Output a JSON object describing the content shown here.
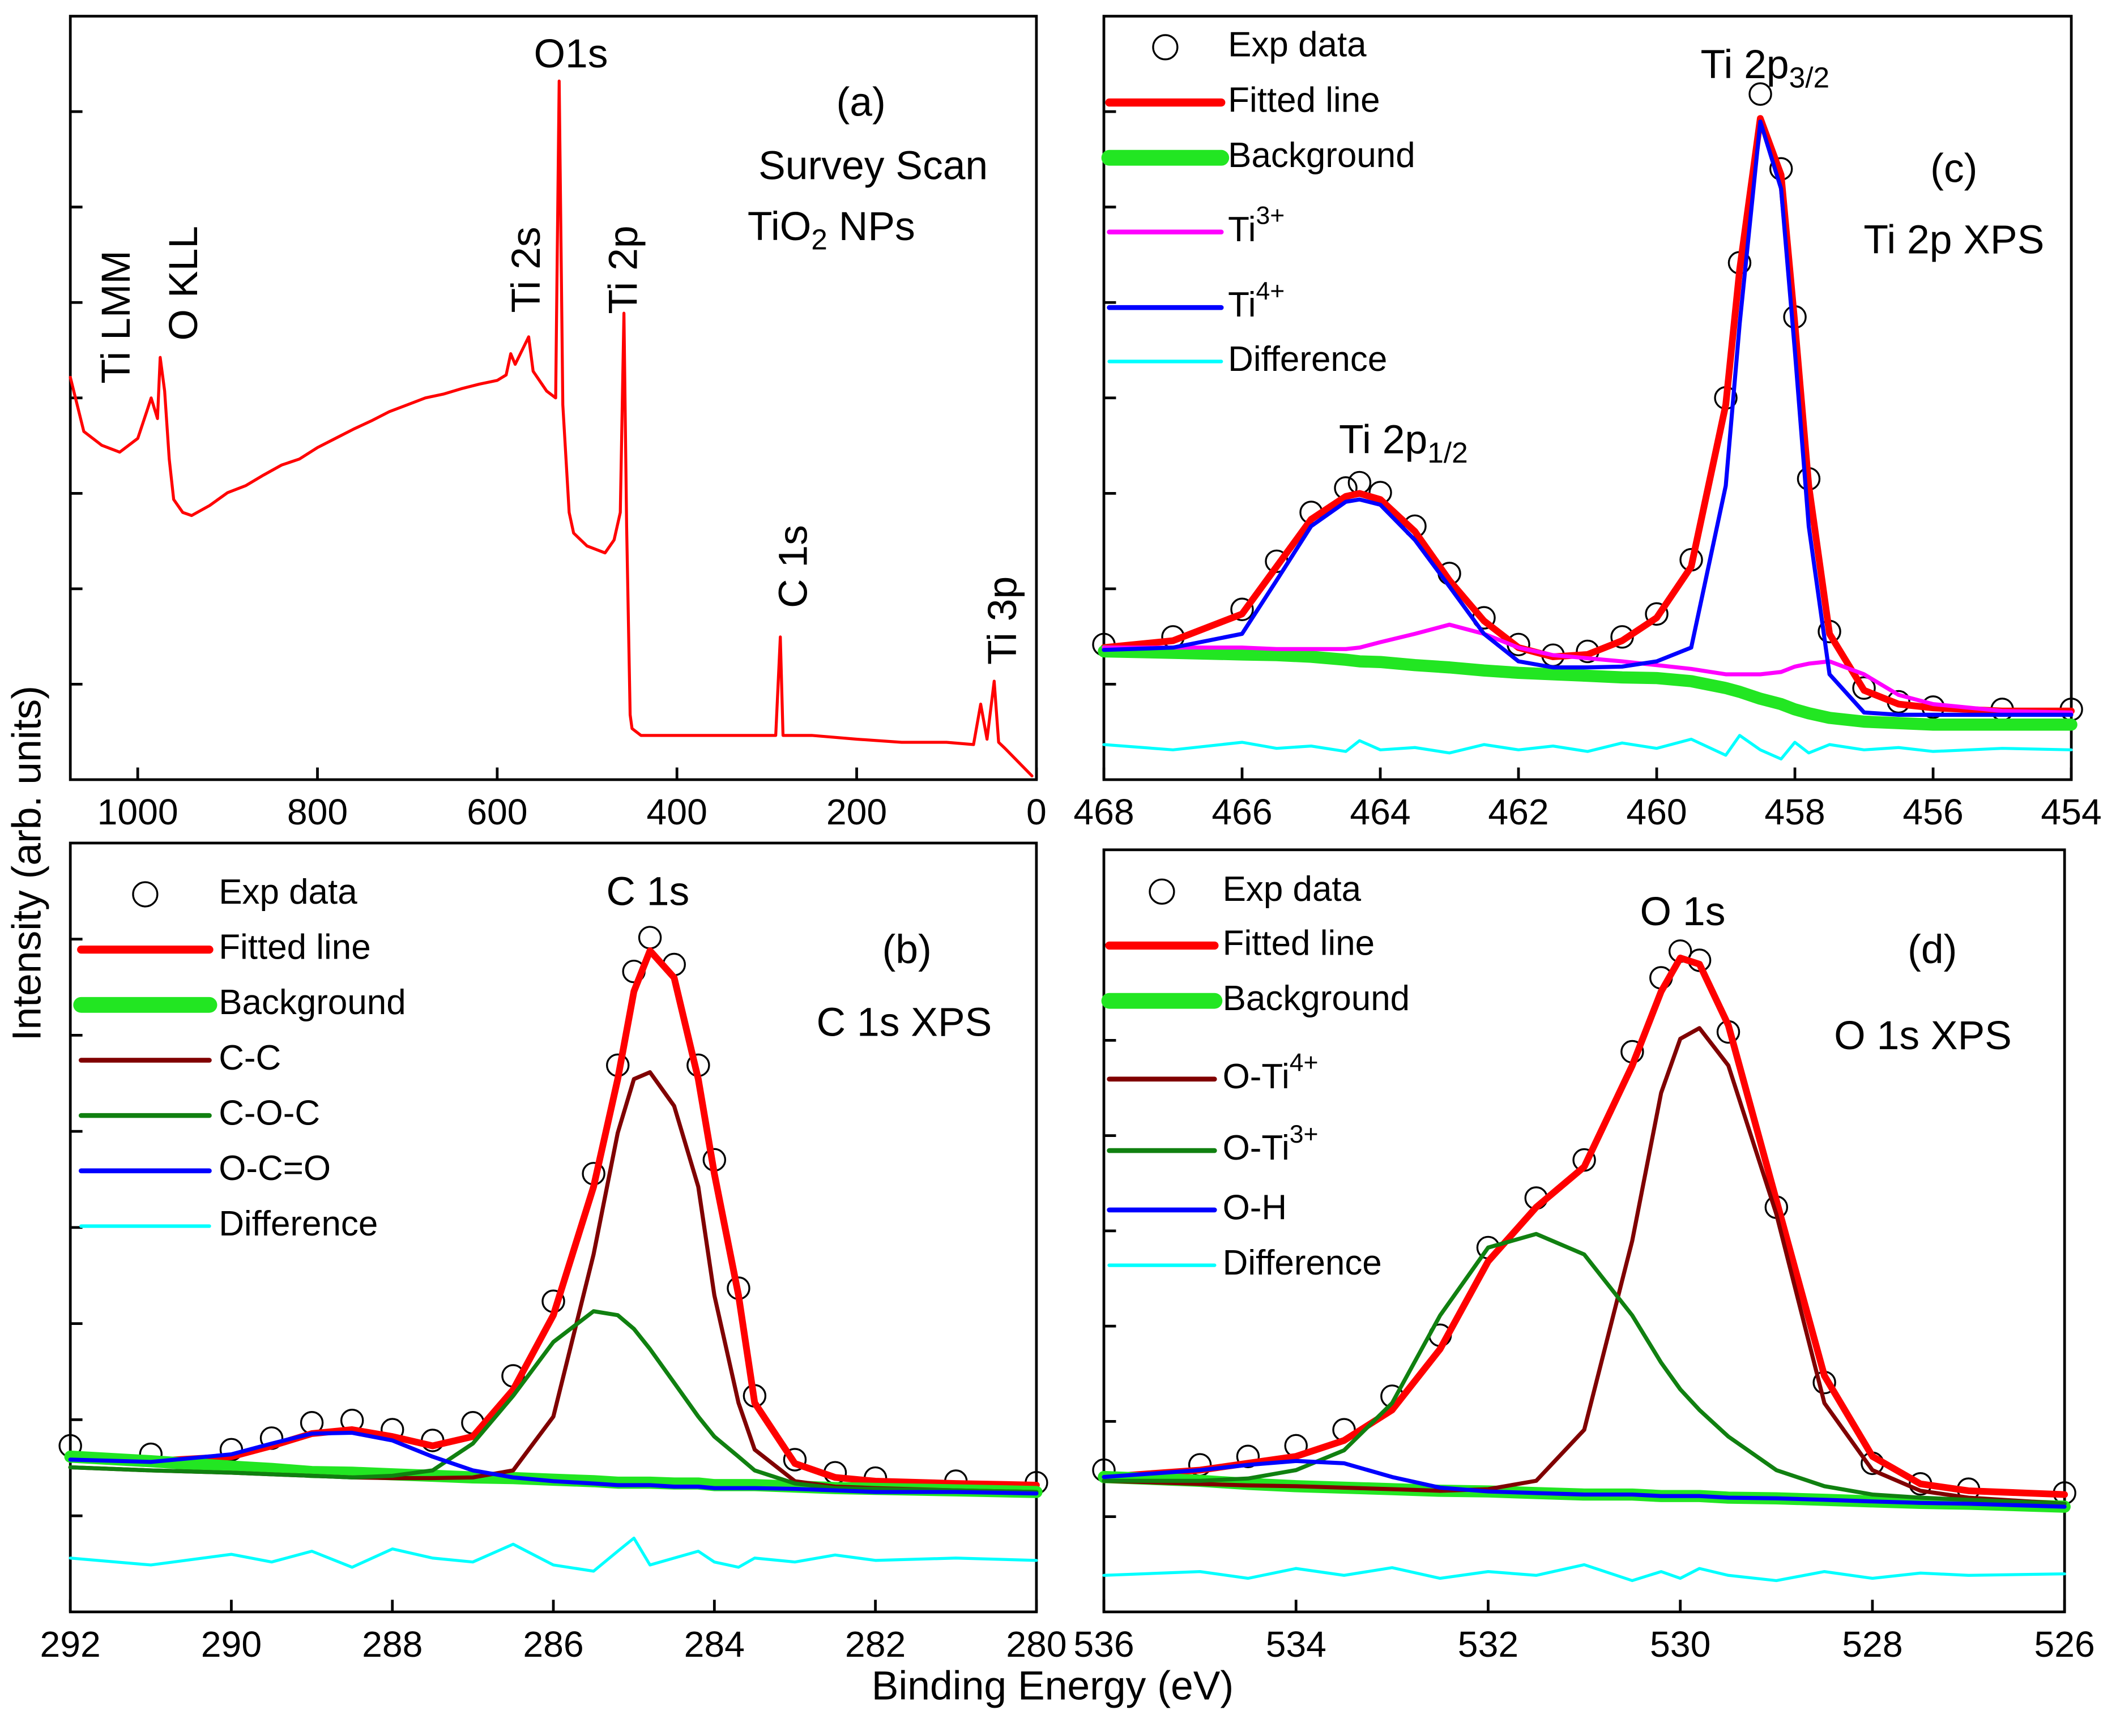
{
  "figure": {
    "xlabel": "Binding Energy (eV)",
    "ylabel": "Intensity (arb. units)"
  },
  "chart_data": [
    {
      "type": "line",
      "xlim": [
        1075,
        0
      ],
      "xticks": [
        1000,
        800,
        600,
        400,
        200,
        0
      ],
      "ylim": [
        0,
        100
      ],
      "yticks": [
        12.5,
        25,
        37.5,
        50,
        62.5,
        75,
        87.5
      ],
      "x": [
        1075,
        1060,
        1040,
        1020,
        1000,
        990,
        985,
        978,
        975,
        970,
        965,
        960,
        950,
        940,
        920,
        900,
        880,
        860,
        840,
        820,
        800,
        780,
        760,
        740,
        720,
        700,
        680,
        660,
        640,
        620,
        600,
        590,
        585,
        580,
        565,
        560,
        545,
        535,
        531,
        527,
        520,
        515,
        500,
        480,
        470,
        463,
        459,
        456,
        452,
        450,
        440,
        400,
        350,
        300,
        290,
        285,
        282,
        250,
        200,
        150,
        100,
        70,
        62,
        55,
        47,
        42,
        35,
        20,
        5
      ],
      "series": [
        {
          "color": "#ff0000",
          "values": [
            52.7,
            45.6,
            43.8,
            42.9,
            44.7,
            48.2,
            50.0,
            47.3,
            55.3,
            50.9,
            42.0,
            36.7,
            35.0,
            34.6,
            35.9,
            37.6,
            38.5,
            39.9,
            41.2,
            42.0,
            43.5,
            44.7,
            45.9,
            47.0,
            48.2,
            49.1,
            50.0,
            50.5,
            51.2,
            51.8,
            52.3,
            53.0,
            55.8,
            54.4,
            58.0,
            53.5,
            50.9,
            50.0,
            91.5,
            49.1,
            35.0,
            32.3,
            30.6,
            29.7,
            31.4,
            35.0,
            61.1,
            33.2,
            8.5,
            6.7,
            5.8,
            5.8,
            5.8,
            5.8,
            5.8,
            18.7,
            5.8,
            5.8,
            5.3,
            4.9,
            4.9,
            4.6,
            9.9,
            5.3,
            12.9,
            4.9,
            4.1,
            2.3,
            0.5
          ]
        }
      ],
      "annotations": [
        "Ti LMM",
        "O KLL",
        "O1s",
        "Ti 2s",
        "Ti 2p",
        "C 1s",
        "Ti 3p",
        "(a)",
        "Survey Scan",
        [
          {
            "text": "TiO"
          },
          {
            "text": "2",
            "shift": "sub"
          },
          {
            "text": " NPs"
          }
        ]
      ]
    },
    {
      "type": "line",
      "xlim": [
        292,
        280
      ],
      "xticks": [
        292,
        290,
        288,
        286,
        284,
        282,
        280
      ],
      "ylim": [
        0,
        100
      ],
      "yticks": [
        12.5,
        25,
        37.5,
        50,
        62.5,
        75,
        87.5
      ],
      "x": [
        292,
        291,
        290,
        289.5,
        289,
        288.5,
        288,
        287.5,
        287,
        286.5,
        286,
        285.5,
        285.2,
        285,
        284.8,
        284.5,
        284.2,
        284,
        283.7,
        283.5,
        283,
        282.5,
        282,
        281,
        280
      ],
      "series": [
        {
          "name": "Exp data",
          "color": "#000000",
          "marker": "circle",
          "values": [
            21.6,
            20.5,
            21.1,
            22.6,
            24.6,
            24.9,
            23.7,
            22.3,
            24.6,
            30.7,
            40.4,
            57.0,
            71.1,
            83.3,
            87.7,
            84.2,
            71.1,
            58.8,
            42.1,
            28.1,
            19.8,
            18.1,
            17.4,
            17.0,
            16.8
          ]
        },
        {
          "name": "Fitted line",
          "color": "#ff0000",
          "values": [
            20.2,
            19.6,
            20.2,
            21.6,
            23.2,
            23.7,
            22.8,
            21.6,
            22.8,
            28.9,
            38.6,
            55.3,
            69.3,
            80.7,
            86.0,
            82.5,
            69.3,
            57.0,
            41.2,
            27.2,
            19.3,
            17.5,
            17.0,
            16.7,
            16.5
          ]
        },
        {
          "name": "Background",
          "color": "#22e622",
          "values": [
            20.2,
            19.6,
            18.9,
            18.6,
            18.2,
            18.1,
            17.9,
            17.7,
            17.5,
            17.4,
            17.2,
            17.0,
            16.8,
            16.8,
            16.8,
            16.7,
            16.7,
            16.5,
            16.5,
            16.5,
            16.3,
            16.1,
            16.0,
            15.8,
            15.6
          ]
        },
        {
          "name": "C-C",
          "color": "#800000",
          "values": [
            18.8,
            18.4,
            18.1,
            17.9,
            17.7,
            17.5,
            17.4,
            17.4,
            17.5,
            18.4,
            25.4,
            46.5,
            62.3,
            69.3,
            70.2,
            65.8,
            55.3,
            41.2,
            27.2,
            21.1,
            17.0,
            16.3,
            16.1,
            15.8,
            15.6
          ]
        },
        {
          "name": "C-O-C",
          "color": "#108010",
          "values": [
            18.8,
            18.4,
            18.1,
            17.9,
            17.7,
            17.5,
            17.7,
            18.4,
            21.9,
            28.1,
            35.1,
            39.1,
            38.6,
            36.8,
            34.2,
            29.8,
            25.4,
            22.8,
            20.2,
            18.4,
            16.7,
            16.1,
            16.0,
            15.8,
            15.6
          ]
        },
        {
          "name": "O-C=O",
          "color": "#0000ff",
          "values": [
            19.8,
            19.5,
            20.5,
            21.9,
            23.2,
            23.3,
            22.3,
            20.2,
            18.4,
            17.5,
            17.0,
            16.7,
            16.5,
            16.5,
            16.5,
            16.3,
            16.3,
            16.1,
            16.1,
            16.1,
            16.0,
            15.8,
            15.6,
            15.6,
            15.4
          ]
        },
        {
          "name": "Difference",
          "color": "#00ffff",
          "values": [
            7.0,
            6.1,
            7.5,
            6.5,
            7.9,
            5.8,
            8.2,
            7.0,
            6.5,
            8.8,
            6.1,
            5.3,
            7.9,
            9.6,
            6.1,
            7.0,
            7.9,
            6.5,
            5.8,
            7.0,
            6.5,
            7.4,
            6.7,
            7.0,
            6.7
          ]
        }
      ],
      "annotations": [
        "C 1s",
        "(b)",
        "C 1s XPS"
      ]
    },
    {
      "type": "line",
      "xlim": [
        468,
        454
      ],
      "xticks": [
        468,
        466,
        464,
        462,
        460,
        458,
        456,
        454
      ],
      "ylim": [
        0,
        100
      ],
      "yticks": [
        12.5,
        25,
        37.5,
        50,
        62.5,
        75,
        87.5
      ],
      "x": [
        468,
        467,
        466,
        465.5,
        465,
        464.5,
        464.3,
        464,
        463.5,
        463,
        462.5,
        462,
        461.5,
        461,
        460.5,
        460,
        459.5,
        459,
        458.8,
        458.5,
        458.2,
        458,
        457.8,
        457.5,
        457,
        456.5,
        456,
        455,
        454
      ],
      "series": [
        {
          "name": "Exp data",
          "color": "#000000",
          "marker": "circle",
          "values": [
            17.7,
            18.7,
            22.3,
            28.6,
            35.0,
            38.2,
            38.9,
            37.6,
            33.2,
            27.0,
            21.2,
            17.7,
            16.3,
            16.8,
            18.7,
            21.7,
            28.8,
            50.0,
            67.7,
            89.8,
            80.0,
            60.6,
            39.4,
            19.4,
            12.0,
            10.2,
            9.5,
            9.2,
            9.2
          ]
        },
        {
          "name": "Fitted line",
          "color": "#ff0000",
          "values": [
            17.3,
            18.2,
            21.7,
            27.9,
            34.1,
            37.1,
            37.5,
            36.7,
            32.5,
            26.1,
            20.8,
            17.3,
            16.1,
            16.4,
            18.2,
            21.2,
            27.9,
            49.1,
            66.8,
            86.6,
            79.2,
            59.7,
            38.5,
            19.1,
            11.7,
            9.9,
            9.4,
            9.0,
            9.0
          ]
        },
        {
          "name": "Background",
          "color": "#22e622",
          "values": [
            16.8,
            16.6,
            16.4,
            16.3,
            16.1,
            15.7,
            15.5,
            15.4,
            15.0,
            14.7,
            14.3,
            14.0,
            13.8,
            13.6,
            13.4,
            13.3,
            12.9,
            12.0,
            11.5,
            10.6,
            9.9,
            9.2,
            8.7,
            8.1,
            7.6,
            7.4,
            7.2,
            7.2,
            7.2
          ]
        },
        {
          "name": [
            {
              "text": "Ti"
            },
            {
              "text": "3+",
              "shift": "sup"
            }
          ],
          "color": "#ff00ff",
          "values": [
            17.3,
            17.3,
            17.3,
            17.1,
            17.1,
            17.1,
            17.3,
            18.0,
            19.1,
            20.3,
            19.1,
            17.3,
            16.3,
            15.9,
            15.5,
            15.0,
            14.5,
            13.8,
            13.8,
            13.8,
            14.1,
            14.8,
            15.2,
            15.5,
            13.8,
            11.1,
            9.9,
            9.0,
            8.8
          ]
        },
        {
          "name": [
            {
              "text": "Ti"
            },
            {
              "text": "4+",
              "shift": "sup"
            }
          ],
          "color": "#0000ff",
          "values": [
            17.0,
            17.3,
            19.1,
            26.1,
            33.2,
            36.4,
            36.7,
            36.0,
            31.4,
            25.3,
            19.1,
            15.5,
            14.7,
            14.7,
            14.8,
            15.5,
            17.3,
            38.5,
            59.7,
            86.2,
            77.4,
            56.2,
            33.2,
            13.8,
            8.8,
            8.5,
            8.5,
            8.5,
            8.5
          ]
        },
        {
          "name": "Difference",
          "color": "#00ffff",
          "values": [
            4.6,
            3.9,
            4.9,
            4.1,
            4.4,
            3.7,
            5.1,
            3.9,
            4.2,
            3.5,
            4.6,
            3.9,
            4.4,
            3.7,
            4.8,
            4.1,
            5.3,
            3.2,
            5.8,
            3.9,
            2.7,
            4.9,
            3.5,
            4.6,
            3.9,
            4.2,
            3.7,
            4.1,
            3.9
          ]
        }
      ],
      "annotations": [
        [
          {
            "text": "Ti 2p"
          },
          {
            "text": "3/2",
            "shift": "sub"
          }
        ],
        [
          {
            "text": "Ti 2p"
          },
          {
            "text": "1/2",
            "shift": "sub"
          }
        ],
        "(c)",
        "Ti 2p XPS"
      ]
    },
    {
      "type": "line",
      "xlim": [
        536,
        526
      ],
      "xticks": [
        536,
        534,
        532,
        530,
        528,
        526
      ],
      "ylim": [
        0,
        100
      ],
      "yticks": [
        12.5,
        25,
        37.5,
        50,
        62.5,
        75,
        87.5
      ],
      "x": [
        536,
        535,
        534.5,
        534,
        533.5,
        533,
        532.5,
        532,
        531.5,
        531,
        530.5,
        530.2,
        530,
        529.8,
        529.5,
        529,
        528.5,
        528,
        527.5,
        527,
        526
      ],
      "series": [
        {
          "name": "Exp data",
          "color": "#000000",
          "marker": "circle",
          "values": [
            18.6,
            19.3,
            20.4,
            21.8,
            23.9,
            28.3,
            36.3,
            47.8,
            54.3,
            59.3,
            73.5,
            83.2,
            86.7,
            85.5,
            76.1,
            53.1,
            30.1,
            19.5,
            16.8,
            16.1,
            15.6
          ]
        },
        {
          "name": "Fitted line",
          "color": "#ff0000",
          "values": [
            17.7,
            18.6,
            19.5,
            20.4,
            22.5,
            26.5,
            34.5,
            46.0,
            53.1,
            58.4,
            71.7,
            81.4,
            85.8,
            85.0,
            77.0,
            54.0,
            31.0,
            20.4,
            16.8,
            15.9,
            15.4
          ]
        },
        {
          "name": "Background",
          "color": "#22e622",
          "values": [
            17.7,
            17.2,
            16.8,
            16.5,
            16.3,
            16.1,
            15.9,
            15.8,
            15.6,
            15.4,
            15.4,
            15.2,
            15.2,
            15.2,
            15.0,
            14.9,
            14.7,
            14.5,
            14.3,
            14.2,
            13.8
          ]
        },
        {
          "name": [
            {
              "text": "O-Ti"
            },
            {
              "text": "4+",
              "shift": "sup"
            }
          ],
          "color": "#800000",
          "values": [
            17.2,
            16.8,
            16.6,
            16.5,
            16.3,
            16.1,
            15.9,
            16.1,
            17.2,
            23.9,
            48.7,
            68.1,
            75.2,
            76.6,
            71.7,
            52.2,
            27.4,
            18.6,
            15.9,
            15.0,
            14.2
          ]
        },
        {
          "name": [
            {
              "text": "O-Ti"
            },
            {
              "text": "3+",
              "shift": "sup"
            }
          ],
          "color": "#108010",
          "values": [
            17.2,
            17.2,
            17.5,
            18.6,
            21.2,
            27.4,
            38.9,
            47.8,
            49.6,
            46.9,
            38.9,
            32.7,
            29.2,
            26.5,
            23.0,
            18.6,
            16.5,
            15.4,
            15.0,
            14.7,
            14.2
          ]
        },
        {
          "name": "O-H",
          "color": "#0000ff",
          "values": [
            17.7,
            18.6,
            19.3,
            19.8,
            19.5,
            17.7,
            16.3,
            15.8,
            15.6,
            15.4,
            15.4,
            15.2,
            15.2,
            15.2,
            15.0,
            14.9,
            14.7,
            14.5,
            14.3,
            14.2,
            13.8
          ]
        },
        {
          "name": "Difference",
          "color": "#00ffff",
          "values": [
            4.8,
            5.3,
            4.4,
            5.7,
            4.8,
            5.8,
            4.4,
            5.3,
            4.8,
            6.2,
            4.1,
            5.3,
            4.4,
            5.7,
            4.8,
            4.1,
            5.3,
            4.4,
            5.1,
            4.8,
            5.0
          ]
        }
      ],
      "annotations": [
        "O 1s",
        "(d)",
        "O 1s XPS"
      ]
    }
  ]
}
